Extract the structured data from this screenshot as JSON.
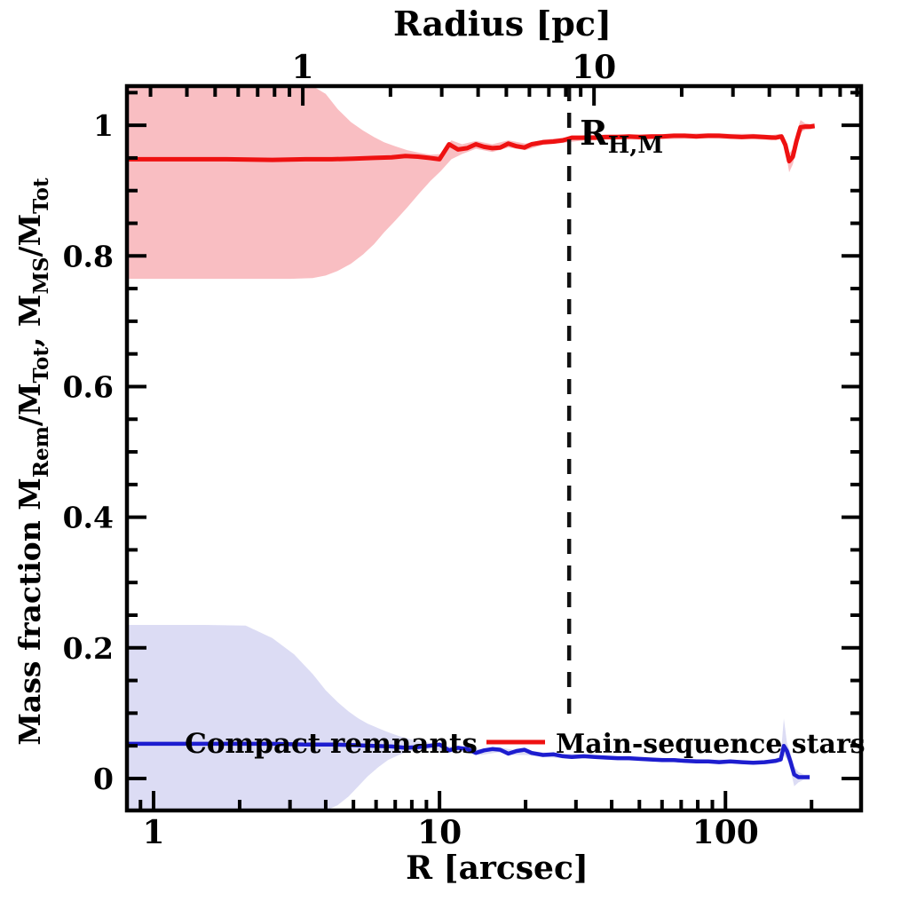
{
  "figure": {
    "top_axis_title": "Radius [pc]",
    "bottom_axis_title": "R [arcsec]",
    "y_axis_title_plain": "Mass fraction  M_Rem/M_Tot, M_MS/M_Tot",
    "y_axis_title_parts": [
      {
        "t": "Mass fraction   "
      },
      {
        "t": "M"
      },
      {
        "t": "Rem",
        "sub": true
      },
      {
        "t": "/M"
      },
      {
        "t": "Tot",
        "sub": true
      },
      {
        "t": ",  "
      },
      {
        "t": "M"
      },
      {
        "t": "MS",
        "sub": true
      },
      {
        "t": "/M"
      },
      {
        "t": "Tot",
        "sub": true
      }
    ],
    "colors": {
      "ms_line": "#ee1111",
      "ms_band": "#f9bec2",
      "remnant_line": "#1d1dcf",
      "remnant_band": "#dcdcf4",
      "frame": "#000000",
      "dashed_line": "#111111",
      "background": "#ffffff"
    }
  },
  "chart_data": {
    "type": "line",
    "title": "",
    "x_axis": {
      "label": "R [arcsec]",
      "scale": "log",
      "range": [
        0.807,
        298
      ],
      "major_ticks": [
        1,
        10,
        100
      ],
      "major_tick_labels": [
        "1",
        "10",
        "100"
      ],
      "minor_ticks": [
        0.9,
        2,
        3,
        4,
        5,
        6,
        7,
        8,
        9,
        20,
        30,
        40,
        50,
        60,
        70,
        80,
        90,
        200
      ]
    },
    "top_axis": {
      "label": "Radius [pc]",
      "scale": "log",
      "range": [
        0.249,
        82.6
      ],
      "major_ticks": [
        1,
        10
      ],
      "major_tick_labels": [
        "1",
        "10"
      ],
      "minor_ticks": [
        0.3,
        0.4,
        0.5,
        0.6,
        0.7,
        0.8,
        0.9,
        2,
        3,
        4,
        5,
        6,
        7,
        8,
        9,
        20,
        30,
        40,
        50,
        60,
        70,
        80
      ]
    },
    "y_axis": {
      "label": "Mass fraction  M_Rem/M_Tot, M_MS/M_Tot",
      "scale": "linear",
      "range": [
        -0.049,
        1.06
      ],
      "major_ticks": [
        0,
        0.2,
        0.4,
        0.6,
        0.8,
        1
      ],
      "major_tick_labels": [
        "0",
        "0.2",
        "0.4",
        "0.6",
        "0.8",
        "1"
      ],
      "minor_ticks": [
        0.05,
        0.1,
        0.15,
        0.25,
        0.3,
        0.35,
        0.45,
        0.5,
        0.55,
        0.65,
        0.7,
        0.75,
        0.85,
        0.9,
        0.95,
        1.05
      ]
    },
    "reference_line": {
      "x_arcsec": 28.4,
      "style": "dashed-vertical",
      "label_parts": [
        {
          "t": "R"
        },
        {
          "t": "H,M",
          "sub": true
        }
      ],
      "label_plain": "R_H,M"
    },
    "legend": [
      {
        "label": "Compact remnants",
        "color": "#1d1dcf",
        "line_sample": false
      },
      {
        "label": "Main-sequence stars",
        "color": "#ee1111",
        "line_sample": true
      }
    ],
    "series": [
      {
        "name": "Main-sequence stars",
        "color": "#ee1111",
        "band_color": "#f9bec2",
        "points": [
          [
            0.81,
            0.948
          ],
          [
            1.2,
            0.948
          ],
          [
            1.8,
            0.948
          ],
          [
            2.6,
            0.947
          ],
          [
            3.4,
            0.948
          ],
          [
            4.2,
            0.948
          ],
          [
            5.0,
            0.949
          ],
          [
            5.9,
            0.95
          ],
          [
            6.8,
            0.951
          ],
          [
            7.6,
            0.953
          ],
          [
            8.4,
            0.952
          ],
          [
            9.2,
            0.95
          ],
          [
            10.0,
            0.948
          ],
          [
            10.8,
            0.971
          ],
          [
            11.6,
            0.963
          ],
          [
            12.5,
            0.965
          ],
          [
            13.4,
            0.971
          ],
          [
            14.3,
            0.967
          ],
          [
            15.3,
            0.965
          ],
          [
            16.3,
            0.966
          ],
          [
            17.4,
            0.972
          ],
          [
            18.6,
            0.968
          ],
          [
            19.8,
            0.966
          ],
          [
            21,
            0.971
          ],
          [
            23,
            0.974
          ],
          [
            25,
            0.975
          ],
          [
            27,
            0.977
          ],
          [
            29,
            0.981
          ],
          [
            32,
            0.981
          ],
          [
            35,
            0.981
          ],
          [
            38,
            0.982
          ],
          [
            42,
            0.982
          ],
          [
            46,
            0.983
          ],
          [
            50,
            0.982
          ],
          [
            55,
            0.983
          ],
          [
            60,
            0.983
          ],
          [
            66,
            0.984
          ],
          [
            72,
            0.984
          ],
          [
            79,
            0.983
          ],
          [
            87,
            0.984
          ],
          [
            95,
            0.984
          ],
          [
            104,
            0.983
          ],
          [
            114,
            0.982
          ],
          [
            125,
            0.983
          ],
          [
            137,
            0.982
          ],
          [
            150,
            0.981
          ],
          [
            157,
            0.983
          ],
          [
            162,
            0.97
          ],
          [
            167,
            0.945
          ],
          [
            172,
            0.952
          ],
          [
            177,
            0.975
          ],
          [
            183,
            0.997
          ],
          [
            190,
            0.998
          ],
          [
            198,
            0.998
          ],
          [
            205,
            0.999
          ]
        ],
        "band": [
          [
            0.81,
            0.765,
            1.06
          ],
          [
            2.0,
            0.765,
            1.06
          ],
          [
            3.0,
            0.765,
            1.06
          ],
          [
            3.6,
            0.766,
            1.06
          ],
          [
            4.0,
            0.77,
            1.048
          ],
          [
            4.4,
            0.777,
            1.025
          ],
          [
            4.9,
            0.788,
            1.005
          ],
          [
            5.4,
            0.802,
            0.992
          ],
          [
            5.9,
            0.818,
            0.982
          ],
          [
            6.4,
            0.836,
            0.974
          ],
          [
            7.0,
            0.854,
            0.968
          ],
          [
            7.7,
            0.874,
            0.962
          ],
          [
            8.5,
            0.896,
            0.958
          ],
          [
            9.3,
            0.915,
            0.955
          ],
          [
            10.1,
            0.93,
            0.956
          ],
          [
            11.0,
            0.948,
            0.977
          ],
          [
            12.0,
            0.956,
            0.971
          ],
          [
            13.4,
            0.964,
            0.976
          ],
          [
            15.3,
            0.959,
            0.971
          ],
          [
            17.4,
            0.966,
            0.977
          ],
          [
            20,
            0.962,
            0.972
          ],
          [
            23,
            0.97,
            0.978
          ],
          [
            27,
            0.973,
            0.981
          ],
          [
            32,
            0.977,
            0.985
          ],
          [
            40,
            0.978,
            0.986
          ],
          [
            50,
            0.978,
            0.986
          ],
          [
            65,
            0.979,
            0.987
          ],
          [
            85,
            0.98,
            0.988
          ],
          [
            104,
            0.979,
            0.987
          ],
          [
            125,
            0.979,
            0.987
          ],
          [
            145,
            0.977,
            0.985
          ],
          [
            155,
            0.979,
            0.987
          ],
          [
            162,
            0.963,
            0.977
          ],
          [
            167,
            0.928,
            0.957
          ],
          [
            172,
            0.94,
            0.964
          ],
          [
            177,
            0.962,
            0.988
          ],
          [
            183,
            0.989,
            1.008
          ],
          [
            190,
            0.993,
            1.003
          ],
          [
            198,
            0.994,
            1.002
          ],
          [
            205,
            0.995,
            1.003
          ]
        ]
      },
      {
        "name": "Compact remnants",
        "color": "#1d1dcf",
        "band_color": "#dcdcf4",
        "points": [
          [
            0.81,
            0.053
          ],
          [
            1.2,
            0.053
          ],
          [
            1.8,
            0.053
          ],
          [
            2.6,
            0.053
          ],
          [
            3.4,
            0.052
          ],
          [
            4.2,
            0.052
          ],
          [
            5.0,
            0.051
          ],
          [
            5.9,
            0.05
          ],
          [
            6.8,
            0.049
          ],
          [
            7.6,
            0.047
          ],
          [
            8.4,
            0.048
          ],
          [
            9.2,
            0.05
          ],
          [
            10.0,
            0.052
          ],
          [
            10.8,
            0.043
          ],
          [
            11.6,
            0.047
          ],
          [
            12.5,
            0.045
          ],
          [
            13.4,
            0.039
          ],
          [
            14.3,
            0.043
          ],
          [
            15.3,
            0.045
          ],
          [
            16.3,
            0.044
          ],
          [
            17.4,
            0.038
          ],
          [
            18.6,
            0.042
          ],
          [
            19.8,
            0.044
          ],
          [
            21,
            0.039
          ],
          [
            23,
            0.036
          ],
          [
            25,
            0.037
          ],
          [
            27,
            0.034
          ],
          [
            29,
            0.033
          ],
          [
            32,
            0.034
          ],
          [
            35,
            0.033
          ],
          [
            38,
            0.032
          ],
          [
            42,
            0.031
          ],
          [
            46,
            0.031
          ],
          [
            50,
            0.03
          ],
          [
            55,
            0.029
          ],
          [
            60,
            0.028
          ],
          [
            66,
            0.028
          ],
          [
            72,
            0.027
          ],
          [
            79,
            0.026
          ],
          [
            87,
            0.026
          ],
          [
            95,
            0.025
          ],
          [
            104,
            0.026
          ],
          [
            114,
            0.025
          ],
          [
            125,
            0.024
          ],
          [
            137,
            0.025
          ],
          [
            150,
            0.027
          ],
          [
            156,
            0.029
          ],
          [
            160,
            0.05
          ],
          [
            164,
            0.042
          ],
          [
            169,
            0.025
          ],
          [
            174,
            0.006
          ],
          [
            180,
            0.002
          ],
          [
            188,
            0.002
          ],
          [
            197,
            0.002
          ]
        ],
        "band": [
          [
            0.81,
            -0.05,
            0.235
          ],
          [
            1.5,
            -0.05,
            0.235
          ],
          [
            2.1,
            -0.05,
            0.234
          ],
          [
            2.6,
            -0.05,
            0.215
          ],
          [
            3.1,
            -0.05,
            0.19
          ],
          [
            3.6,
            -0.05,
            0.16
          ],
          [
            4.0,
            -0.049,
            0.135
          ],
          [
            4.4,
            -0.041,
            0.117
          ],
          [
            4.8,
            -0.028,
            0.103
          ],
          [
            5.2,
            -0.012,
            0.092
          ],
          [
            5.6,
            0.003,
            0.084
          ],
          [
            6.1,
            0.017,
            0.077
          ],
          [
            6.6,
            0.028,
            0.071
          ],
          [
            7.2,
            0.036,
            0.065
          ],
          [
            7.9,
            0.042,
            0.06
          ],
          [
            8.7,
            0.044,
            0.056
          ],
          [
            9.5,
            0.046,
            0.054
          ],
          [
            10.3,
            0.04,
            0.05
          ],
          [
            11.2,
            0.04,
            0.049
          ],
          [
            12.5,
            0.041,
            0.049
          ],
          [
            14,
            0.036,
            0.044
          ],
          [
            16,
            0.04,
            0.048
          ],
          [
            18,
            0.036,
            0.044
          ],
          [
            20,
            0.036,
            0.043
          ],
          [
            23,
            0.033,
            0.04
          ],
          [
            27,
            0.031,
            0.038
          ],
          [
            32,
            0.031,
            0.037
          ],
          [
            40,
            0.028,
            0.034
          ],
          [
            50,
            0.027,
            0.033
          ],
          [
            65,
            0.025,
            0.031
          ],
          [
            85,
            0.023,
            0.029
          ],
          [
            104,
            0.023,
            0.029
          ],
          [
            125,
            0.021,
            0.027
          ],
          [
            140,
            0.022,
            0.028
          ],
          [
            150,
            0.024,
            0.031
          ],
          [
            156,
            0.026,
            0.034
          ],
          [
            160,
            0.035,
            0.092
          ],
          [
            164,
            0.03,
            0.055
          ],
          [
            169,
            0.012,
            0.038
          ],
          [
            174,
            -0.012,
            0.018
          ],
          [
            180,
            -0.006,
            0.01
          ],
          [
            188,
            -0.002,
            0.006
          ],
          [
            197,
            -0.002,
            0.006
          ]
        ]
      }
    ]
  }
}
